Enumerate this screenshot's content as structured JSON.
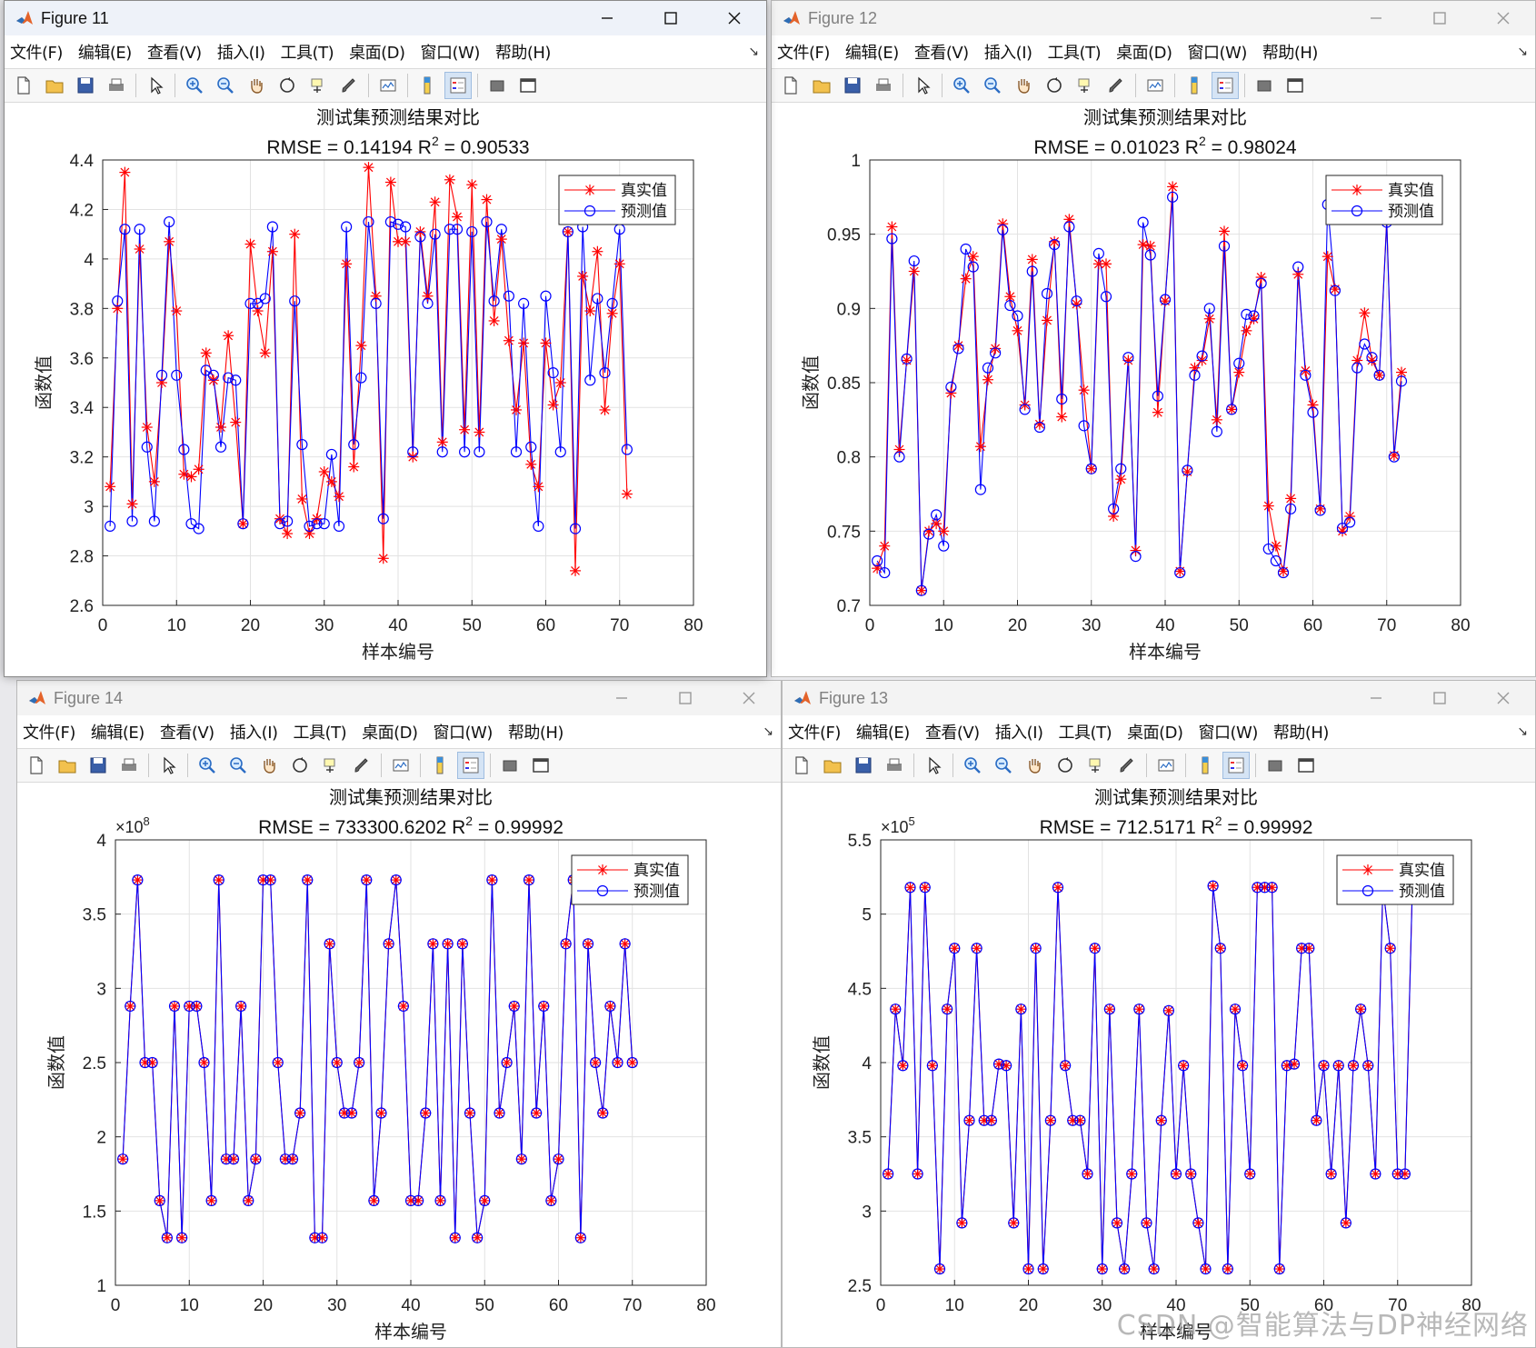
{
  "menus": [
    "文件(F)",
    "编辑(E)",
    "查看(V)",
    "插入(I)",
    "工具(T)",
    "桌面(D)",
    "窗口(W)",
    "帮助(H)"
  ],
  "toolbar_icons": [
    "new-figure-icon",
    "open-file-icon",
    "save-icon",
    "print-icon",
    "|",
    "pointer-icon",
    "|",
    "zoom-in-icon",
    "zoom-out-icon",
    "pan-hand-icon",
    "rotate-3d-icon",
    "data-cursor-icon",
    "brush-icon",
    "|",
    "link-plot-icon",
    "|",
    "colorbar-icon",
    "legend-icon",
    "|",
    "hide-plot-tools-icon",
    "show-plot-tools-icon"
  ],
  "colors": {
    "true_series": "#ff0000",
    "pred_series": "#0000ff",
    "grid": "#e2e2e2",
    "axis": "#262626"
  },
  "watermark": "CSDN @智能算法与DP神经网络",
  "windows": [
    {
      "id": "fig11",
      "title": "Figure 11",
      "active": true,
      "chart_data": {
        "type": "line",
        "title": "测试集预测结果对比",
        "subtitle": {
          "prefix": "RMSE = 0.14194 R",
          "sup": "2",
          "suffix": " = 0.90533"
        },
        "xlabel": "样本编号",
        "ylabel": "函数值",
        "exponent": "",
        "xlim": [
          0,
          80
        ],
        "ylim": [
          2.6,
          4.4
        ],
        "xticks": [
          0,
          10,
          20,
          30,
          40,
          50,
          60,
          70,
          80
        ],
        "yticks": [
          "2.6",
          "2.8",
          "3",
          "3.2",
          "3.4",
          "3.6",
          "3.8",
          "4",
          "4.2",
          "4.4"
        ],
        "legend": {
          "position": "top-right"
        },
        "series": [
          {
            "name": "真实值",
            "marker": "*",
            "values": [
              3.08,
              3.8,
              4.35,
              3.01,
              4.04,
              3.32,
              3.1,
              3.5,
              4.07,
              3.79,
              3.13,
              3.12,
              3.15,
              3.62,
              3.51,
              3.32,
              3.69,
              3.34,
              2.93,
              4.06,
              3.79,
              3.62,
              4.03,
              2.95,
              2.89,
              4.1,
              3.03,
              2.89,
              2.95,
              3.14,
              3.1,
              3.04,
              3.98,
              3.16,
              3.65,
              4.37,
              3.85,
              2.79,
              4.31,
              4.07,
              4.07,
              3.2,
              4.11,
              3.85,
              4.23,
              3.26,
              4.32,
              4.17,
              3.31,
              4.3,
              3.3,
              4.24,
              3.75,
              4.08,
              3.67,
              3.39,
              3.66,
              3.17,
              3.08,
              3.66,
              3.41,
              3.5,
              4.11,
              2.74,
              3.93,
              3.79,
              4.03,
              3.39,
              3.78,
              3.98,
              3.05
            ]
          },
          {
            "name": "预测值",
            "marker": "o",
            "values": [
              2.92,
              3.83,
              4.12,
              2.94,
              4.12,
              3.24,
              2.94,
              3.53,
              4.15,
              3.53,
              3.23,
              2.93,
              2.91,
              3.55,
              3.53,
              3.24,
              3.52,
              3.51,
              2.93,
              3.82,
              3.82,
              3.84,
              4.13,
              2.93,
              2.94,
              3.83,
              3.25,
              2.92,
              2.93,
              2.93,
              3.21,
              2.92,
              4.13,
              3.25,
              3.52,
              4.15,
              3.82,
              2.95,
              4.15,
              4.14,
              4.13,
              3.22,
              4.09,
              3.82,
              4.1,
              3.22,
              4.12,
              4.12,
              3.22,
              4.11,
              3.22,
              4.15,
              3.83,
              4.12,
              3.85,
              3.22,
              3.82,
              3.24,
              2.92,
              3.85,
              3.54,
              3.22,
              4.11,
              2.91,
              4.13,
              3.51,
              3.84,
              3.54,
              3.82,
              4.12,
              3.23
            ]
          }
        ]
      }
    },
    {
      "id": "fig12",
      "title": "Figure 12",
      "active": false,
      "chart_data": {
        "type": "line",
        "title": "测试集预测结果对比",
        "subtitle": {
          "prefix": "RMSE = 0.01023 R",
          "sup": "2",
          "suffix": " = 0.98024"
        },
        "xlabel": "样本编号",
        "ylabel": "函数值",
        "exponent": "",
        "xlim": [
          0,
          80
        ],
        "ylim": [
          0.7,
          1.0
        ],
        "xticks": [
          0,
          10,
          20,
          30,
          40,
          50,
          60,
          70,
          80
        ],
        "yticks": [
          "0.7",
          "0.75",
          "0.8",
          "0.85",
          "0.9",
          "0.95",
          "1"
        ],
        "legend": {
          "position": "top-right"
        },
        "series": [
          {
            "name": "真实值",
            "marker": "*",
            "values": [
              0.725,
              0.74,
              0.955,
              0.805,
              0.865,
              0.925,
              0.71,
              0.75,
              0.755,
              0.75,
              0.843,
              0.875,
              0.92,
              0.935,
              0.807,
              0.852,
              0.873,
              0.957,
              0.908,
              0.885,
              0.835,
              0.933,
              0.822,
              0.892,
              0.945,
              0.827,
              0.96,
              0.903,
              0.845,
              0.792,
              0.93,
              0.93,
              0.76,
              0.785,
              0.865,
              0.737,
              0.943,
              0.942,
              0.83,
              0.905,
              0.982,
              0.723,
              0.79,
              0.86,
              0.865,
              0.893,
              0.825,
              0.952,
              0.832,
              0.857,
              0.885,
              0.893,
              0.921,
              0.767,
              0.74,
              0.723,
              0.772,
              0.923,
              0.858,
              0.835,
              0.765,
              0.935,
              0.913,
              0.75,
              0.76,
              0.865,
              0.897,
              0.865,
              0.855,
              0.96,
              0.801,
              0.857
            ]
          },
          {
            "name": "预测值",
            "marker": "o",
            "values": [
              0.73,
              0.722,
              0.947,
              0.8,
              0.866,
              0.932,
              0.71,
              0.748,
              0.761,
              0.74,
              0.847,
              0.873,
              0.94,
              0.928,
              0.778,
              0.86,
              0.87,
              0.953,
              0.902,
              0.895,
              0.832,
              0.925,
              0.82,
              0.91,
              0.943,
              0.839,
              0.955,
              0.905,
              0.821,
              0.792,
              0.937,
              0.908,
              0.765,
              0.792,
              0.867,
              0.733,
              0.958,
              0.936,
              0.841,
              0.906,
              0.975,
              0.722,
              0.791,
              0.855,
              0.868,
              0.9,
              0.817,
              0.942,
              0.832,
              0.863,
              0.896,
              0.895,
              0.917,
              0.738,
              0.73,
              0.722,
              0.765,
              0.928,
              0.855,
              0.83,
              0.764,
              0.97,
              0.912,
              0.752,
              0.756,
              0.86,
              0.876,
              0.867,
              0.855,
              0.958,
              0.8,
              0.851
            ]
          }
        ]
      }
    },
    {
      "id": "fig14",
      "title": "Figure 14",
      "active": false,
      "chart_data": {
        "type": "line",
        "title": "测试集预测结果对比",
        "subtitle": {
          "prefix": "RMSE = 733300.6202 R",
          "sup": "2",
          "suffix": " = 0.99992"
        },
        "xlabel": "样本编号",
        "ylabel": "函数值",
        "exponent": "8",
        "xlim": [
          0,
          80
        ],
        "ylim": [
          1,
          4
        ],
        "xticks": [
          0,
          10,
          20,
          30,
          40,
          50,
          60,
          70,
          80
        ],
        "yticks": [
          "1",
          "1.5",
          "2",
          "2.5",
          "3",
          "3.5",
          "4"
        ],
        "legend": {
          "position": "top-right"
        },
        "series": [
          {
            "name": "真实值",
            "marker": "*",
            "values": [
              1.85,
              2.88,
              3.73,
              2.5,
              2.5,
              1.57,
              1.32,
              2.88,
              1.32,
              2.88,
              2.88,
              2.5,
              1.57,
              3.73,
              1.85,
              1.85,
              2.88,
              1.57,
              1.85,
              3.73,
              3.73,
              2.5,
              1.85,
              1.85,
              2.16,
              3.73,
              1.32,
              1.32,
              3.3,
              2.5,
              2.16,
              2.16,
              2.5,
              3.73,
              1.57,
              2.16,
              3.3,
              3.73,
              2.88,
              1.57,
              1.57,
              2.16,
              3.3,
              1.57,
              3.3,
              1.32,
              3.3,
              2.16,
              1.32,
              1.57,
              3.73,
              2.16,
              2.5,
              2.88,
              1.85,
              3.73,
              2.16,
              2.88,
              1.57,
              1.85,
              3.3,
              3.73,
              1.32,
              3.3,
              2.5,
              2.16,
              2.88,
              2.5,
              3.3,
              2.5
            ]
          },
          {
            "name": "预测值",
            "marker": "o",
            "values": [
              1.85,
              2.88,
              3.73,
              2.5,
              2.5,
              1.57,
              1.32,
              2.88,
              1.32,
              2.88,
              2.88,
              2.5,
              1.57,
              3.73,
              1.85,
              1.85,
              2.88,
              1.57,
              1.85,
              3.73,
              3.73,
              2.5,
              1.85,
              1.85,
              2.16,
              3.73,
              1.32,
              1.32,
              3.3,
              2.5,
              2.16,
              2.16,
              2.5,
              3.73,
              1.57,
              2.16,
              3.3,
              3.73,
              2.88,
              1.57,
              1.57,
              2.16,
              3.3,
              1.57,
              3.3,
              1.32,
              3.3,
              2.16,
              1.32,
              1.57,
              3.73,
              2.16,
              2.5,
              2.88,
              1.85,
              3.73,
              2.16,
              2.88,
              1.57,
              1.85,
              3.3,
              3.73,
              1.32,
              3.3,
              2.5,
              2.16,
              2.88,
              2.5,
              3.3,
              2.5
            ]
          }
        ]
      }
    },
    {
      "id": "fig13",
      "title": "Figure 13",
      "active": false,
      "chart_data": {
        "type": "line",
        "title": "测试集预测结果对比",
        "subtitle": {
          "prefix": "RMSE = 712.5171 R",
          "sup": "2",
          "suffix": " = 0.99992"
        },
        "xlabel": "样本编号",
        "ylabel": "函数值",
        "exponent": "5",
        "xlim": [
          0,
          80
        ],
        "ylim": [
          2.5,
          5.5
        ],
        "xticks": [
          0,
          10,
          20,
          30,
          40,
          50,
          60,
          70,
          80
        ],
        "yticks": [
          "2.5",
          "3",
          "3.5",
          "4",
          "4.5",
          "5",
          "5.5"
        ],
        "legend": {
          "position": "top-right"
        },
        "series": [
          {
            "name": "真实值",
            "marker": "*",
            "values": [
              3.25,
              4.36,
              3.98,
              5.18,
              3.25,
              5.18,
              3.98,
              2.61,
              4.36,
              4.77,
              2.92,
              3.61,
              4.77,
              3.61,
              3.61,
              3.99,
              3.98,
              2.92,
              4.36,
              2.61,
              4.77,
              2.61,
              3.61,
              5.18,
              3.98,
              3.61,
              3.61,
              3.25,
              4.77,
              2.61,
              4.36,
              2.92,
              2.61,
              3.25,
              4.36,
              2.92,
              2.61,
              3.61,
              4.35,
              3.25,
              3.98,
              3.25,
              2.92,
              2.61,
              5.19,
              4.77,
              2.61,
              4.36,
              3.98,
              3.25,
              5.18,
              5.18,
              5.18,
              2.61,
              3.98,
              3.99,
              4.77,
              4.77,
              3.61,
              3.98,
              3.25,
              3.98,
              2.92,
              3.98,
              4.36,
              3.98,
              3.25,
              5.18,
              4.77,
              3.25,
              3.25,
              5.19
            ]
          },
          {
            "name": "预测值",
            "marker": "o",
            "values": [
              3.25,
              4.36,
              3.98,
              5.18,
              3.25,
              5.18,
              3.98,
              2.61,
              4.36,
              4.77,
              2.92,
              3.61,
              4.77,
              3.61,
              3.61,
              3.99,
              3.98,
              2.92,
              4.36,
              2.61,
              4.77,
              2.61,
              3.61,
              5.18,
              3.98,
              3.61,
              3.61,
              3.25,
              4.77,
              2.61,
              4.36,
              2.92,
              2.61,
              3.25,
              4.36,
              2.92,
              2.61,
              3.61,
              4.35,
              3.25,
              3.98,
              3.25,
              2.92,
              2.61,
              5.19,
              4.77,
              2.61,
              4.36,
              3.98,
              3.25,
              5.18,
              5.18,
              5.18,
              2.61,
              3.98,
              3.99,
              4.77,
              4.77,
              3.61,
              3.98,
              3.25,
              3.98,
              2.92,
              3.98,
              4.36,
              3.98,
              3.25,
              5.18,
              4.77,
              3.25,
              3.25,
              5.19
            ]
          }
        ]
      }
    }
  ]
}
